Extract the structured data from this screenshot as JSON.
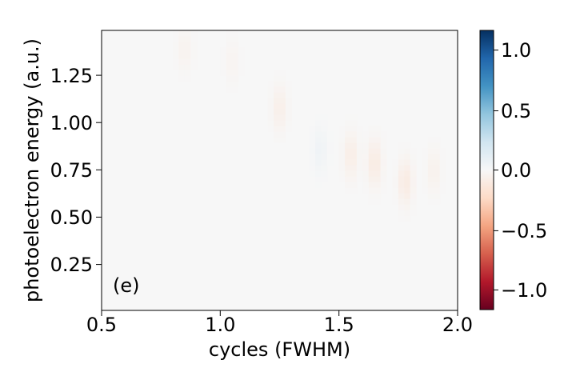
{
  "chart_data": {
    "type": "heatmap",
    "xlabel": "cycles (FWHM)",
    "ylabel": "photoelectron energy (a.u.)",
    "annotation": "(e)",
    "xlim": [
      0.5,
      2.0
    ],
    "ylim": [
      0.0,
      1.48
    ],
    "x_ticks": [
      "0.5",
      "1.0",
      "1.5",
      "2.0"
    ],
    "y_ticks": [
      "0.25",
      "0.50",
      "0.75",
      "1.00",
      "1.25"
    ],
    "grid": false,
    "colormap": "RdBu (diverging, red negative, blue positive)",
    "colorbar": {
      "range": [
        -1.15,
        1.15
      ],
      "ticks": [
        "1.0",
        "0.5",
        "0.0",
        "−0.5",
        "−1.0"
      ],
      "colors": [
        "#67001f",
        "#b2182b",
        "#d6604d",
        "#f4a582",
        "#fddbc7",
        "#f7f7f7",
        "#d1e5f0",
        "#92c5de",
        "#4393c3",
        "#2166ac",
        "#053061"
      ]
    },
    "features": [
      {
        "x": 0.85,
        "y": 1.38,
        "value": -0.04
      },
      {
        "x": 1.05,
        "y": 1.32,
        "value": -0.03
      },
      {
        "x": 1.25,
        "y": 1.07,
        "value": -0.07
      },
      {
        "x": 1.42,
        "y": 0.85,
        "value": 0.05
      },
      {
        "x": 1.55,
        "y": 0.82,
        "value": -0.08
      },
      {
        "x": 1.65,
        "y": 0.78,
        "value": -0.1
      },
      {
        "x": 1.78,
        "y": 0.68,
        "value": -0.1
      },
      {
        "x": 1.9,
        "y": 0.74,
        "value": -0.05
      }
    ]
  }
}
